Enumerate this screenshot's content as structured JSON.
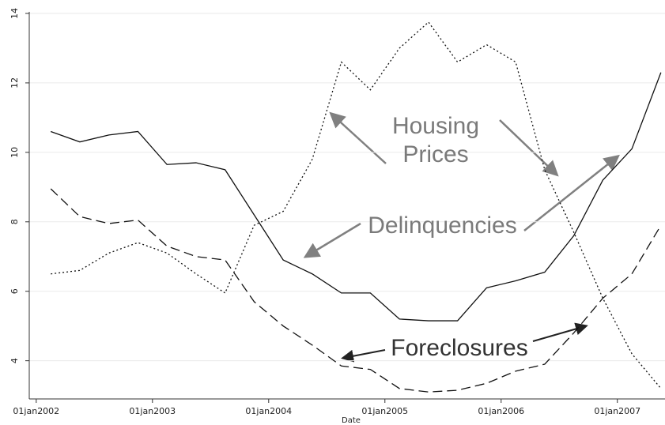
{
  "chart_data": {
    "type": "line",
    "x_label": "Date",
    "xlim": [
      2001.94,
      2007.41
    ],
    "ylim": [
      2.9,
      14
    ],
    "xticks": [
      {
        "value": 2002,
        "label": "01jan2002"
      },
      {
        "value": 2003,
        "label": "01jan2003"
      },
      {
        "value": 2004,
        "label": "01jan2004"
      },
      {
        "value": 2005,
        "label": "01jan2005"
      },
      {
        "value": 2006,
        "label": "01jan2006"
      },
      {
        "value": 2007,
        "label": "01jan2007"
      }
    ],
    "yticks": [
      4,
      6,
      8,
      10,
      12,
      14
    ],
    "grid": true,
    "x": [
      2002.125,
      2002.375,
      2002.625,
      2002.875,
      2003.125,
      2003.375,
      2003.625,
      2003.875,
      2004.125,
      2004.375,
      2004.625,
      2004.875,
      2005.125,
      2005.375,
      2005.625,
      2005.875,
      2006.125,
      2006.375,
      2006.625,
      2006.875,
      2007.125,
      2007.375
    ],
    "series": [
      {
        "name": "Delinquencies",
        "color": "#111111",
        "dash": "solid",
        "values": [
          10.6,
          10.3,
          10.5,
          10.6,
          9.65,
          9.7,
          9.5,
          8.2,
          6.9,
          6.5,
          5.95,
          5.95,
          5.2,
          5.15,
          5.15,
          6.1,
          6.3,
          6.55,
          7.6,
          9.2,
          10.1,
          12.3
        ]
      },
      {
        "name": "Foreclosures",
        "color": "#111111",
        "dash": "dashed",
        "values": [
          8.95,
          8.15,
          7.95,
          8.05,
          7.3,
          7.0,
          6.9,
          5.7,
          5.0,
          4.45,
          3.85,
          3.75,
          3.2,
          3.1,
          3.15,
          3.35,
          3.7,
          3.9,
          4.8,
          5.8,
          6.5,
          7.9
        ]
      },
      {
        "name": "Housing Prices",
        "color": "#111111",
        "dash": "dotted",
        "values": [
          6.5,
          6.6,
          7.1,
          7.4,
          7.1,
          6.5,
          5.95,
          7.9,
          8.3,
          9.8,
          12.6,
          11.8,
          13.0,
          13.75,
          12.6,
          13.1,
          12.6,
          9.5,
          7.7,
          5.8,
          4.2,
          3.2
        ]
      }
    ]
  }
}
